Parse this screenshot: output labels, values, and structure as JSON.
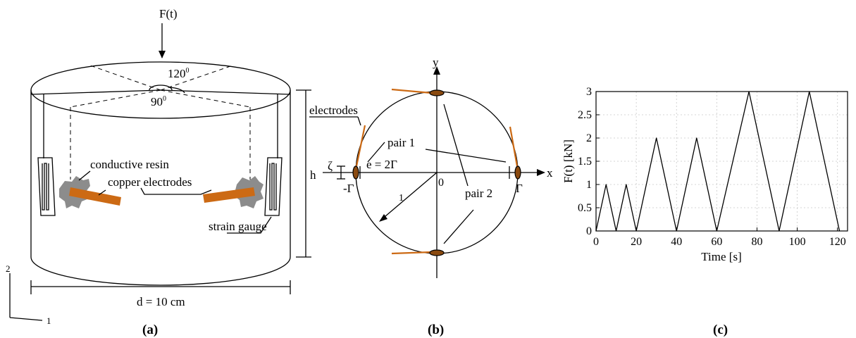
{
  "panel_a": {
    "caption": "(a)",
    "force_label": "F(t)",
    "angle_120": "120",
    "angle_90": "90",
    "degree_mark": "0",
    "label_conductive_resin": "conductive resin",
    "label_copper_electrodes": "copper electrodes",
    "label_strain_gauge": "strain gauge",
    "height_label": "h",
    "diameter_label": "d = 10 cm",
    "axis_2": "2",
    "axis_1": "1",
    "colors": {
      "copper": "#cc6a14",
      "resin": "#8c8c8c"
    }
  },
  "panel_b": {
    "caption": "(b)",
    "label_electrodes": "electrodes",
    "label_pair1": "pair 1",
    "label_pair2": "pair 2",
    "label_e": "e = 2Γ",
    "label_zeta": "ζ",
    "label_neg_gamma": "-Γ",
    "label_gamma": "Γ",
    "label_origin": "0",
    "label_x": "x",
    "label_y": "y",
    "label_1": "1",
    "colors": {
      "electrode": "#cc6a14"
    }
  },
  "panel_c": {
    "caption": "(c)",
    "chart_data": {
      "type": "line",
      "xlabel": "Time [s]",
      "ylabel": "F(t)  [kN]",
      "xlim": [
        0,
        125
      ],
      "ylim": [
        0,
        3
      ],
      "xticks": [
        0,
        20,
        40,
        60,
        80,
        100,
        120
      ],
      "yticks": [
        0,
        0.5,
        1,
        1.5,
        2,
        2.5,
        3
      ],
      "ytick_labels": [
        "0",
        "0.5",
        "1",
        "1.5",
        "2",
        "2.5",
        "3"
      ],
      "grid": true,
      "x": [
        0,
        5,
        10,
        15,
        20,
        30,
        40,
        50,
        60,
        76,
        91,
        106,
        121
      ],
      "y": [
        0,
        1,
        0,
        1,
        0,
        2,
        0,
        2,
        0,
        3,
        0,
        3,
        0
      ]
    }
  }
}
